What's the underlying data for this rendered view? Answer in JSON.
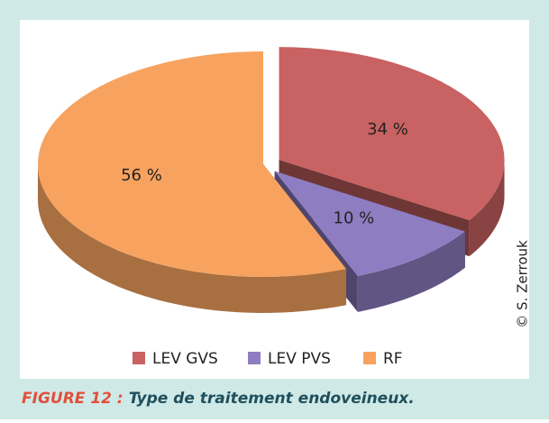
{
  "chart_data": {
    "type": "pie",
    "categories": [
      "LEV GVS",
      "LEV PVS",
      "RF"
    ],
    "values": [
      34,
      10,
      56
    ],
    "value_labels": [
      "34 %",
      "10 %",
      "56 %"
    ],
    "colors": [
      "#c96262",
      "#8f7dc2",
      "#f7a35f"
    ],
    "caption_label": "FIGURE 12 :",
    "caption": "Type de traitement endoveineux.",
    "credit": "© S. Zerrouk"
  }
}
